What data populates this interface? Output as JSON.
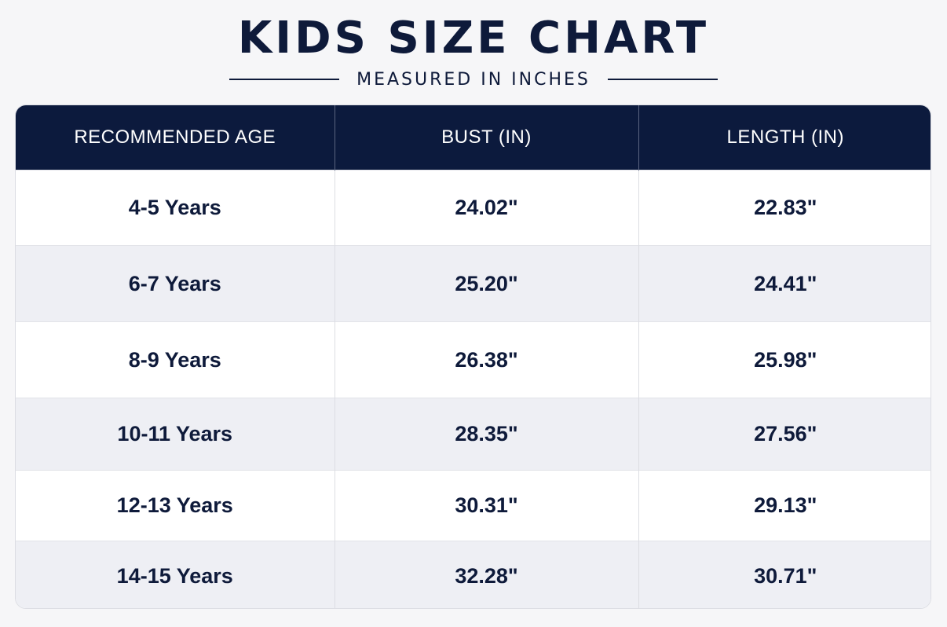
{
  "header": {
    "title": "KIDS SIZE CHART",
    "subtitle": "MEASURED IN INCHES"
  },
  "table": {
    "columns": [
      "RECOMMENDED AGE",
      "BUST (IN)",
      "LENGTH (IN)"
    ],
    "rows": [
      [
        "4-5 Years",
        "24.02\"",
        "22.83\""
      ],
      [
        "6-7 Years",
        "25.20\"",
        "24.41\""
      ],
      [
        "8-9 Years",
        "26.38\"",
        "25.98\""
      ],
      [
        "10-11 Years",
        "28.35\"",
        "27.56\""
      ],
      [
        "12-13 Years",
        "30.31\"",
        "29.13\""
      ],
      [
        "14-15 Years",
        "32.28\"",
        "30.71\""
      ]
    ]
  },
  "colors": {
    "navy": "#0c1a3d",
    "row_alt": "#eeeff4",
    "background": "#f6f6f8"
  }
}
